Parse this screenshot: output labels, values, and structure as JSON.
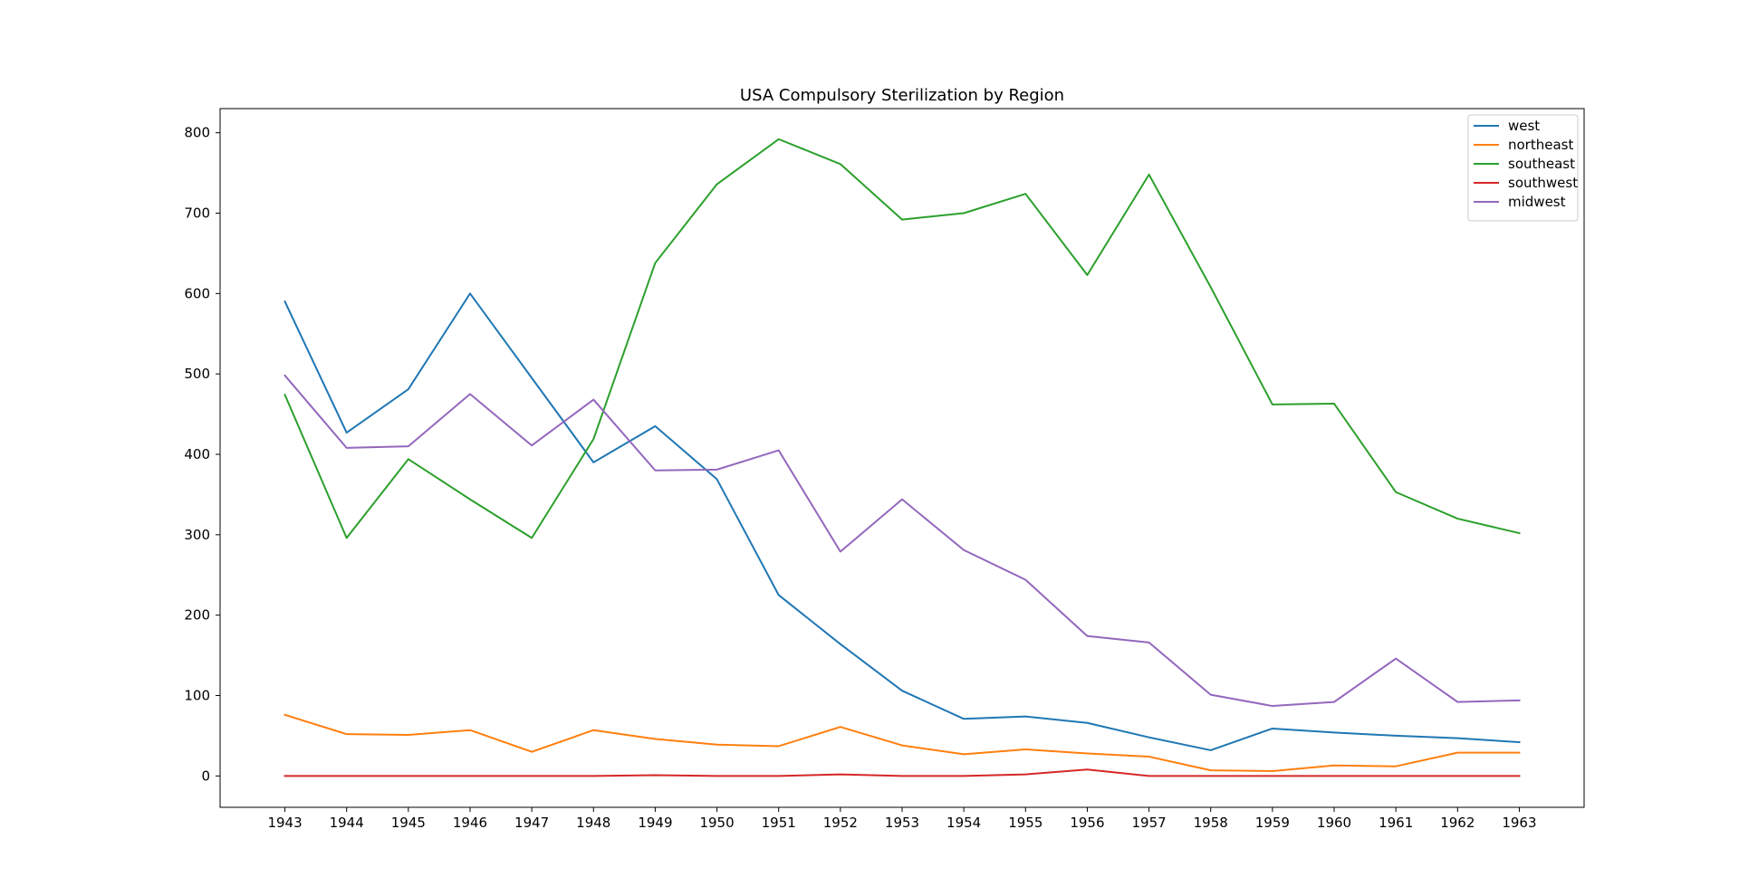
{
  "chart_data": {
    "type": "line",
    "title": "USA Compulsory Sterilization by Region",
    "xlabel": "",
    "ylabel": "",
    "x": [
      1943,
      1944,
      1945,
      1946,
      1947,
      1948,
      1949,
      1950,
      1951,
      1952,
      1953,
      1954,
      1955,
      1956,
      1957,
      1958,
      1959,
      1960,
      1961,
      1962,
      1963
    ],
    "xlim": [
      1941.95,
      1964.05
    ],
    "ylim": [
      -39,
      830
    ],
    "yticks": [
      0,
      100,
      200,
      300,
      400,
      500,
      600,
      700,
      800
    ],
    "grid": false,
    "legend_position": "top-right",
    "series": [
      {
        "name": "west",
        "color": "#1f77b4",
        "values": [
          590,
          427,
          481,
          600,
          495,
          390,
          435,
          369,
          225,
          164,
          106,
          71,
          74,
          66,
          48,
          32,
          59,
          54,
          50,
          47,
          42
        ]
      },
      {
        "name": "northeast",
        "color": "#ff7f0e",
        "values": [
          76,
          52,
          51,
          57,
          30,
          57,
          46,
          39,
          37,
          61,
          38,
          27,
          33,
          28,
          24,
          7,
          6,
          13,
          12,
          29,
          29
        ]
      },
      {
        "name": "southeast",
        "color": "#2ca02c",
        "values": [
          474,
          296,
          394,
          344,
          296,
          419,
          638,
          736,
          792,
          761,
          692,
          700,
          724,
          623,
          748,
          608,
          462,
          463,
          353,
          320,
          302
        ]
      },
      {
        "name": "southwest",
        "color": "#d62728",
        "values": [
          0,
          0,
          0,
          0,
          0,
          0,
          1,
          0,
          0,
          2,
          0,
          0,
          2,
          8,
          0,
          0,
          0,
          0,
          0,
          0,
          0
        ]
      },
      {
        "name": "midwest",
        "color": "#9467bd",
        "values": [
          498,
          408,
          410,
          475,
          411,
          468,
          380,
          381,
          405,
          279,
          344,
          281,
          244,
          174,
          166,
          101,
          87,
          92,
          146,
          92,
          94
        ]
      }
    ]
  }
}
